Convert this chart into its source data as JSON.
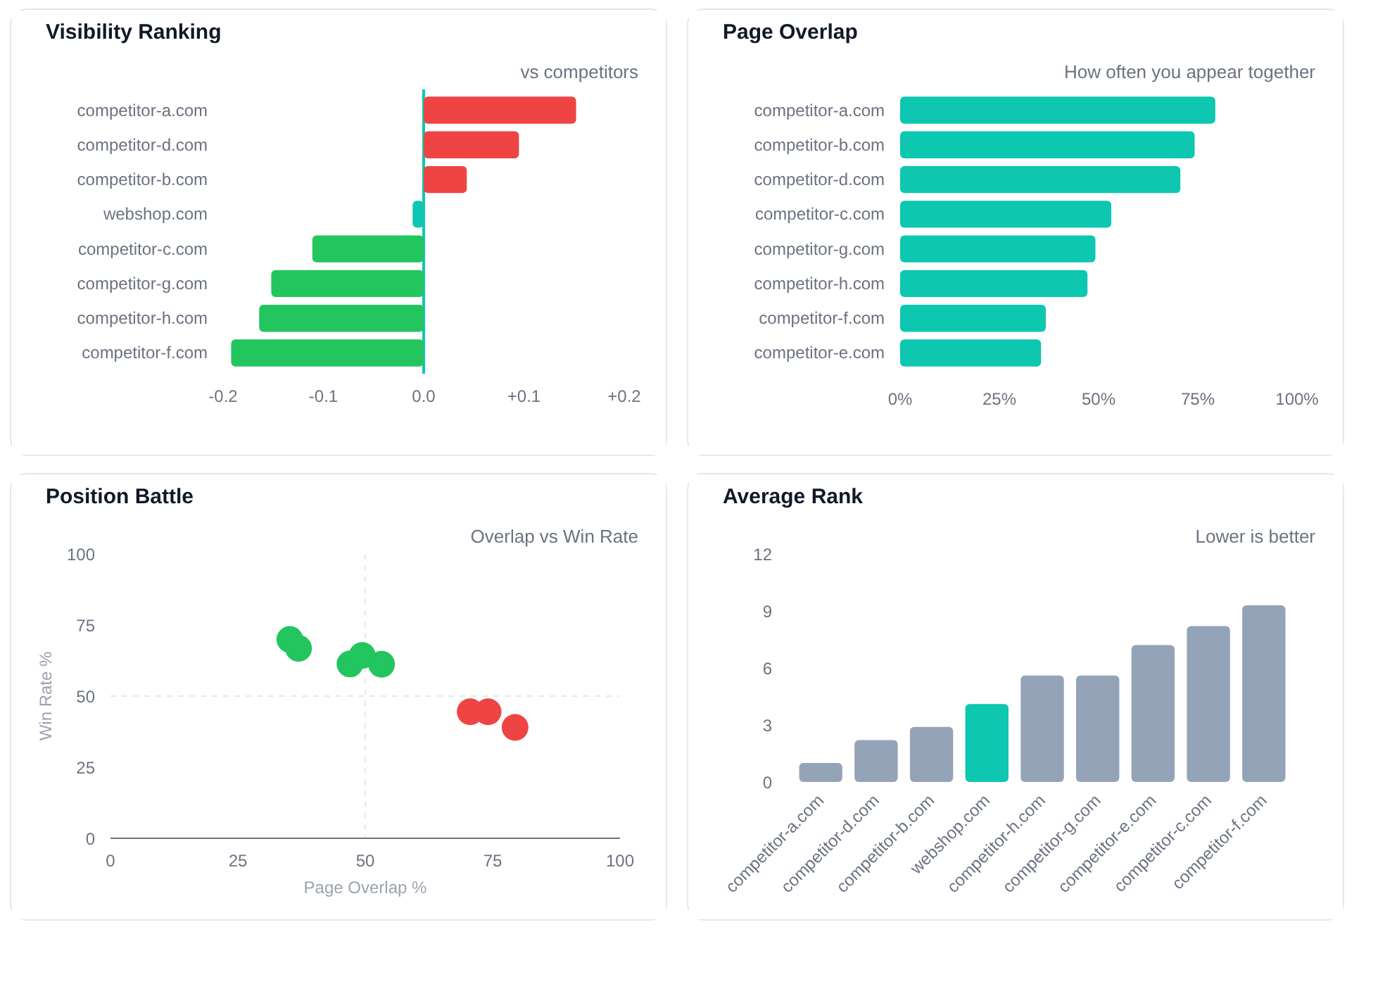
{
  "chart_data": [
    {
      "type": "bar",
      "orientation": "horizontal",
      "title": "Visibility Ranking",
      "subtitle": "vs competitors",
      "categories": [
        "competitor-a.com",
        "competitor-d.com",
        "competitor-b.com",
        "webshop.com",
        "competitor-c.com",
        "competitor-g.com",
        "competitor-h.com",
        "competitor-f.com"
      ],
      "values": [
        0.152,
        0.095,
        0.043,
        -0.011,
        -0.111,
        -0.152,
        -0.164,
        -0.192
      ],
      "colors": [
        "#ef4444",
        "#ef4444",
        "#ef4444",
        "#0dc7b0",
        "#22c55e",
        "#22c55e",
        "#22c55e",
        "#22c55e"
      ],
      "xlim": [
        -0.2,
        0.2
      ],
      "xticks": [
        {
          "value": -0.2,
          "label": "-0.2"
        },
        {
          "value": -0.1,
          "label": "-0.1"
        },
        {
          "value": 0,
          "label": "0.0"
        },
        {
          "value": 0.1,
          "label": "+0.1"
        },
        {
          "value": 0.2,
          "label": "+0.2"
        }
      ],
      "ref_lines": [
        {
          "axis": "x",
          "value": 0,
          "color": "#0dc7b0"
        }
      ]
    },
    {
      "type": "bar",
      "orientation": "horizontal",
      "title": "Page Overlap",
      "subtitle": "How often you appear together",
      "categories": [
        "competitor-a.com",
        "competitor-b.com",
        "competitor-d.com",
        "competitor-c.com",
        "competitor-g.com",
        "competitor-h.com",
        "competitor-f.com",
        "competitor-e.com"
      ],
      "values": [
        79.4,
        74.2,
        70.6,
        53.2,
        49.2,
        47.2,
        36.7,
        35.5
      ],
      "color": "#0dc7b0",
      "xlim": [
        0,
        100
      ],
      "xticks": [
        {
          "value": 0,
          "label": "0%"
        },
        {
          "value": 25,
          "label": "25%"
        },
        {
          "value": 50,
          "label": "50%"
        },
        {
          "value": 75,
          "label": "75%"
        },
        {
          "value": 100,
          "label": "100%"
        }
      ]
    },
    {
      "type": "scatter",
      "title": "Position Battle",
      "subtitle": "Overlap vs Win Rate",
      "xlabel": "Page Overlap %",
      "ylabel": "Win Rate %",
      "x": [
        35.2,
        36.9,
        47.0,
        49.4,
        53.2,
        70.6,
        74.1,
        79.4
      ],
      "values": [
        69.9,
        66.8,
        61.3,
        64.3,
        61.2,
        44.5,
        44.5,
        39.0
      ],
      "colors": [
        "#22c55e",
        "#22c55e",
        "#22c55e",
        "#22c55e",
        "#22c55e",
        "#ef4444",
        "#ef4444",
        "#ef4444"
      ],
      "marker": "circle",
      "xlim": [
        0,
        100
      ],
      "ylim": [
        0,
        100
      ],
      "xticks": [
        0,
        25,
        50,
        75,
        100
      ],
      "yticks": [
        0,
        25,
        50,
        75,
        100
      ],
      "ref_lines": [
        {
          "axis": "x",
          "value": 50,
          "color": "#e5e7eb",
          "line_style": "dashed"
        },
        {
          "axis": "y",
          "value": 50,
          "color": "#e5e7eb",
          "line_style": "dashed"
        }
      ]
    },
    {
      "type": "bar",
      "title": "Average Rank",
      "subtitle": "Lower is better",
      "categories": [
        "competitor-a.com",
        "competitor-d.com",
        "competitor-b.com",
        "webshop.com",
        "competitor-h.com",
        "competitor-g.com",
        "competitor-e.com",
        "competitor-c.com",
        "competitor-f.com"
      ],
      "values": [
        1.0,
        2.2,
        2.9,
        4.1,
        5.6,
        5.6,
        7.2,
        8.2,
        9.3
      ],
      "colors": [
        "#94a3b8",
        "#94a3b8",
        "#94a3b8",
        "#0dc7b0",
        "#94a3b8",
        "#94a3b8",
        "#94a3b8",
        "#94a3b8",
        "#94a3b8"
      ],
      "ylim": [
        0,
        12
      ],
      "yticks": [
        0,
        3,
        6,
        9,
        12
      ]
    }
  ]
}
